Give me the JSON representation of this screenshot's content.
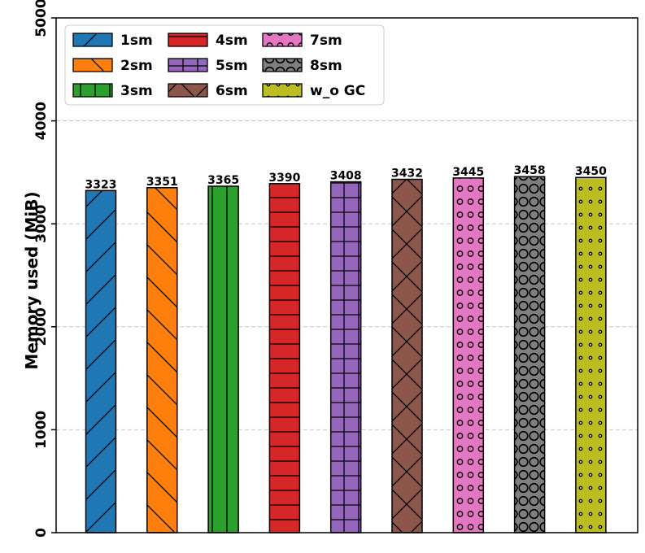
{
  "chart_data": {
    "type": "bar",
    "categories": [
      "1sm",
      "2sm",
      "3sm",
      "4sm",
      "5sm",
      "6sm",
      "7sm",
      "8sm",
      "w_o GC"
    ],
    "values": [
      3323,
      3351,
      3365,
      3390,
      3408,
      3432,
      3445,
      3458,
      3450
    ],
    "ylabel": "Memory used (MiB)",
    "xlabel": "",
    "title": "",
    "ylim": [
      0,
      5000
    ],
    "yticks": [
      0,
      1000,
      2000,
      3000,
      4000,
      5000
    ],
    "grid": "horizontal dashed",
    "legend_position": "top-left",
    "legend_columns": 3,
    "colors": [
      "#1f77b4",
      "#ff7f0e",
      "#2ca02c",
      "#d62728",
      "#9467bd",
      "#8c564b",
      "#e377c2",
      "#7f7f7f",
      "#bcbd22"
    ],
    "hatches": [
      "forward-slash",
      "back-slash",
      "vertical",
      "horizontal",
      "grid",
      "cross",
      "small-circles",
      "large-circles",
      "dots"
    ]
  }
}
